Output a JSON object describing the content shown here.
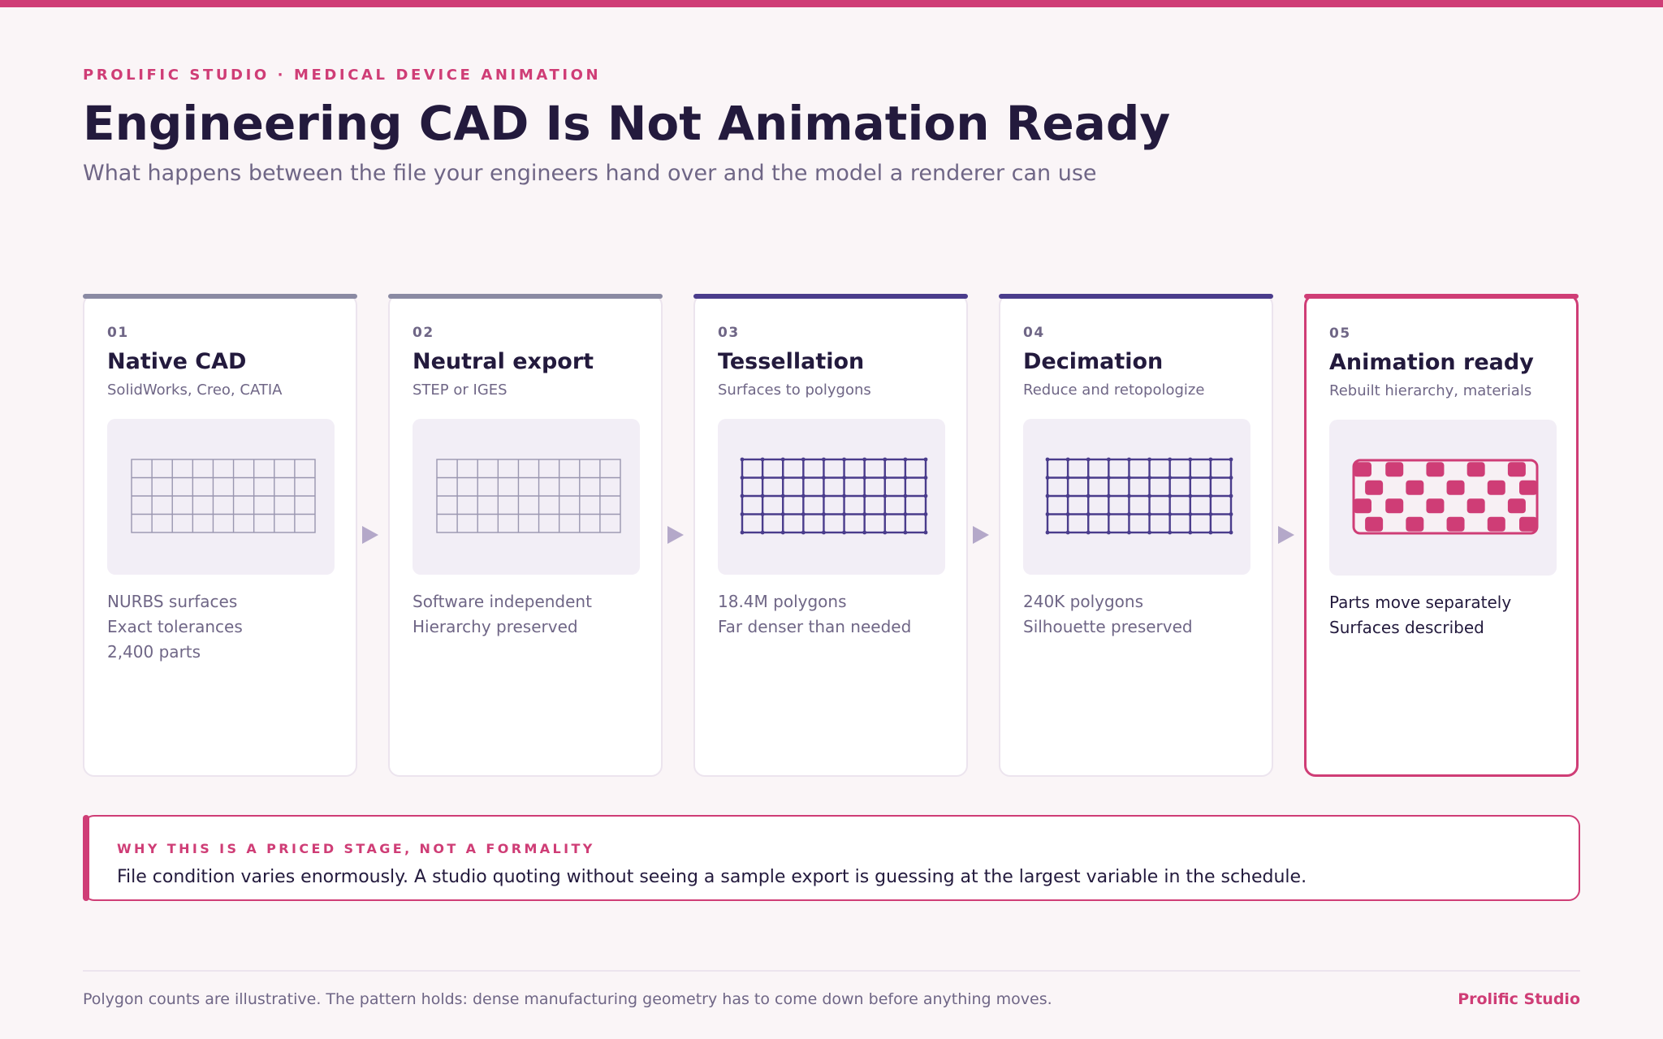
{
  "header": {
    "eyebrow": "PROLIFIC STUDIO · MEDICAL DEVICE ANIMATION",
    "title": "Engineering CAD Is Not Animation Ready",
    "subtitle": "What happens between the file your engineers hand over and the model a renderer can use"
  },
  "stages": [
    {
      "number": "01",
      "title": "Native CAD",
      "subtitle": "SolidWorks, Creo, CATIA",
      "notes": [
        "NURBS surfaces",
        "Exact tolerances",
        "2,400 parts"
      ],
      "accent": "#8a8aa3",
      "visual": "light-grid-icon"
    },
    {
      "number": "02",
      "title": "Neutral export",
      "subtitle": "STEP or IGES",
      "notes": [
        "Software independent",
        "Hierarchy preserved"
      ],
      "accent": "#8a8aa3",
      "visual": "light-grid-icon"
    },
    {
      "number": "03",
      "title": "Tessellation",
      "subtitle": "Surfaces to polygons",
      "notes": [
        "18.4M polygons",
        "Far denser than needed"
      ],
      "accent": "#4a3c8c",
      "visual": "dense-mesh-icon"
    },
    {
      "number": "04",
      "title": "Decimation",
      "subtitle": "Reduce and retopologize",
      "notes": [
        "240K polygons",
        "Silhouette preserved"
      ],
      "accent": "#4a3c8c",
      "visual": "dense-mesh-icon"
    },
    {
      "number": "05",
      "title": "Animation ready",
      "subtitle": "Rebuilt hierarchy, materials",
      "notes": [
        "Parts move separately",
        "Surfaces described"
      ],
      "accent": "#cf3d76",
      "visual": "segmented-parts-icon"
    }
  ],
  "callout": {
    "label": "WHY THIS IS A PRICED STAGE, NOT A FORMALITY",
    "text": "File condition varies enormously. A studio quoting without seeing a sample export is guessing at the largest variable in the schedule."
  },
  "footer": {
    "note": "Polygon counts are illustrative. The pattern holds: dense manufacturing geometry has to come down before anything moves.",
    "brand": "Prolific Studio"
  },
  "colors": {
    "accent_pink": "#cf3d76",
    "accent_purple": "#4a3c8c",
    "accent_gray": "#8a8aa3",
    "text_dark": "#231a3d",
    "text_muted": "#6f6686"
  }
}
